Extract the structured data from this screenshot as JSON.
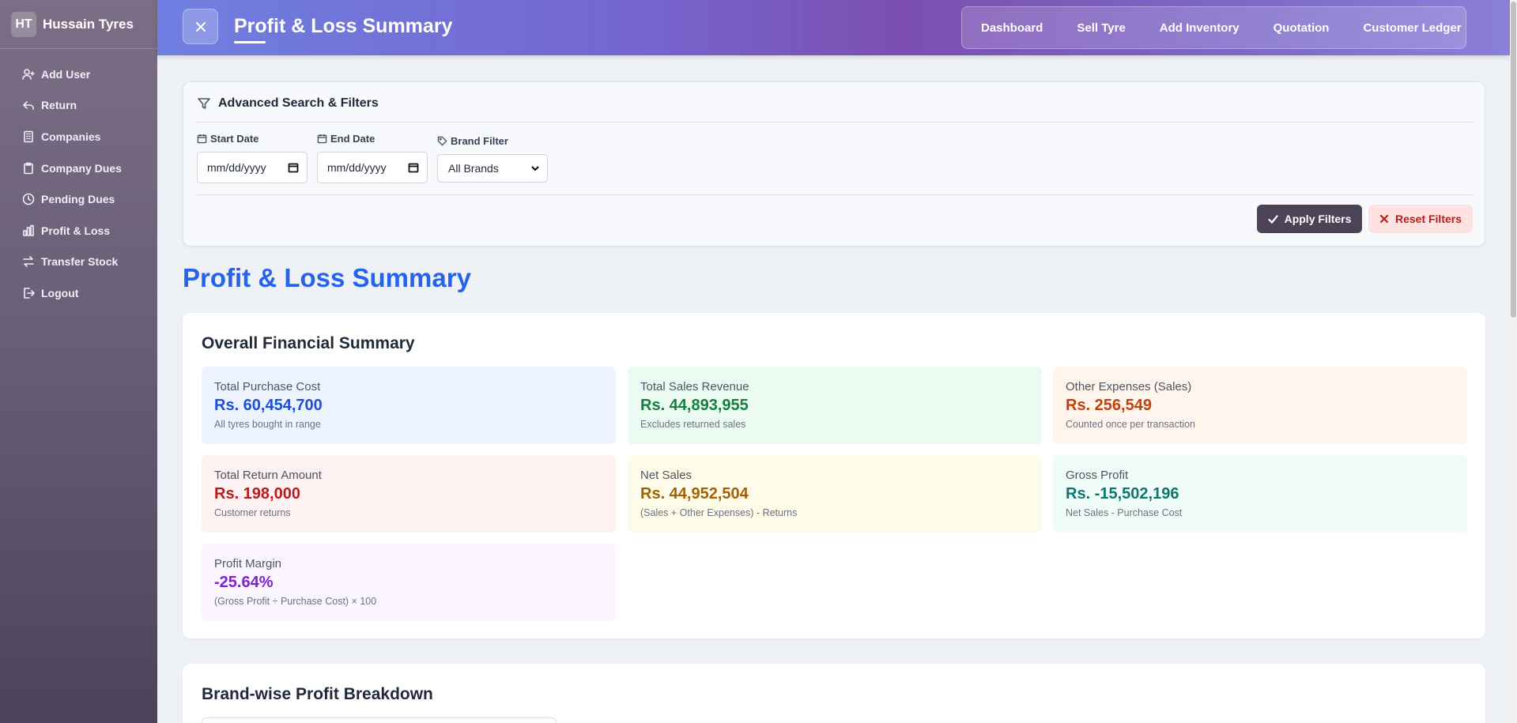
{
  "sidebar": {
    "logo": "HT",
    "brand": "Hussain Tyres",
    "items": [
      {
        "label": "Add User",
        "icon": "user-plus-icon"
      },
      {
        "label": "Return",
        "icon": "return-arrow-icon"
      },
      {
        "label": "Companies",
        "icon": "building-icon"
      },
      {
        "label": "Company Dues",
        "icon": "clipboard-icon"
      },
      {
        "label": "Pending Dues",
        "icon": "clock-icon"
      },
      {
        "label": "Profit & Loss",
        "icon": "bar-chart-icon"
      },
      {
        "label": "Transfer Stock",
        "icon": "transfer-icon"
      },
      {
        "label": "Logout",
        "icon": "logout-icon"
      }
    ]
  },
  "header": {
    "title": "Profit & Loss Summary",
    "nav": [
      "Dashboard",
      "Sell Tyre",
      "Add Inventory",
      "Quotation",
      "Customer Ledger"
    ]
  },
  "filters": {
    "title": "Advanced Search & Filters",
    "start_date_label": "Start Date",
    "start_date_value": "mm/dd/yyyy",
    "end_date_label": "End Date",
    "end_date_value": "mm/dd/yyyy",
    "brand_label": "Brand Filter",
    "brand_value": "All Brands",
    "apply_label": "Apply Filters",
    "reset_label": "Reset Filters"
  },
  "page": {
    "heading": "Profit & Loss Summary"
  },
  "summary": {
    "title": "Overall Financial Summary",
    "cards": [
      {
        "label": "Total Purchase Cost",
        "value": "Rs. 60,454,700",
        "note": "All tyres bought in range",
        "bg": "#eef4ff",
        "color": "#1d4ed8"
      },
      {
        "label": "Total Sales Revenue",
        "value": "Rs. 44,893,955",
        "note": "Excludes returned sales",
        "bg": "#ecfbf1",
        "color": "#15803d"
      },
      {
        "label": "Other Expenses (Sales)",
        "value": "Rs. 256,549",
        "note": "Counted once per transaction",
        "bg": "#fff5ec",
        "color": "#c2410c"
      },
      {
        "label": "Total Return Amount",
        "value": "Rs. 198,000",
        "note": "Customer returns",
        "bg": "#fef1f1",
        "color": "#b91c1c"
      },
      {
        "label": "Net Sales",
        "value": "Rs. 44,952,504",
        "note": "(Sales + Other Expenses) - Returns",
        "bg": "#fefbe8",
        "color": "#a16207"
      },
      {
        "label": "Gross Profit",
        "value": "Rs. -15,502,196",
        "note": "Net Sales - Purchase Cost",
        "bg": "#effcf8",
        "color": "#0f766e"
      },
      {
        "label": "Profit Margin",
        "value": "-25.64%",
        "note": "(Gross Profit ÷ Purchase Cost) × 100",
        "bg": "#faf5ff",
        "color": "#7e22ce"
      }
    ]
  },
  "brandwise": {
    "title": "Brand-wise Profit Breakdown"
  }
}
